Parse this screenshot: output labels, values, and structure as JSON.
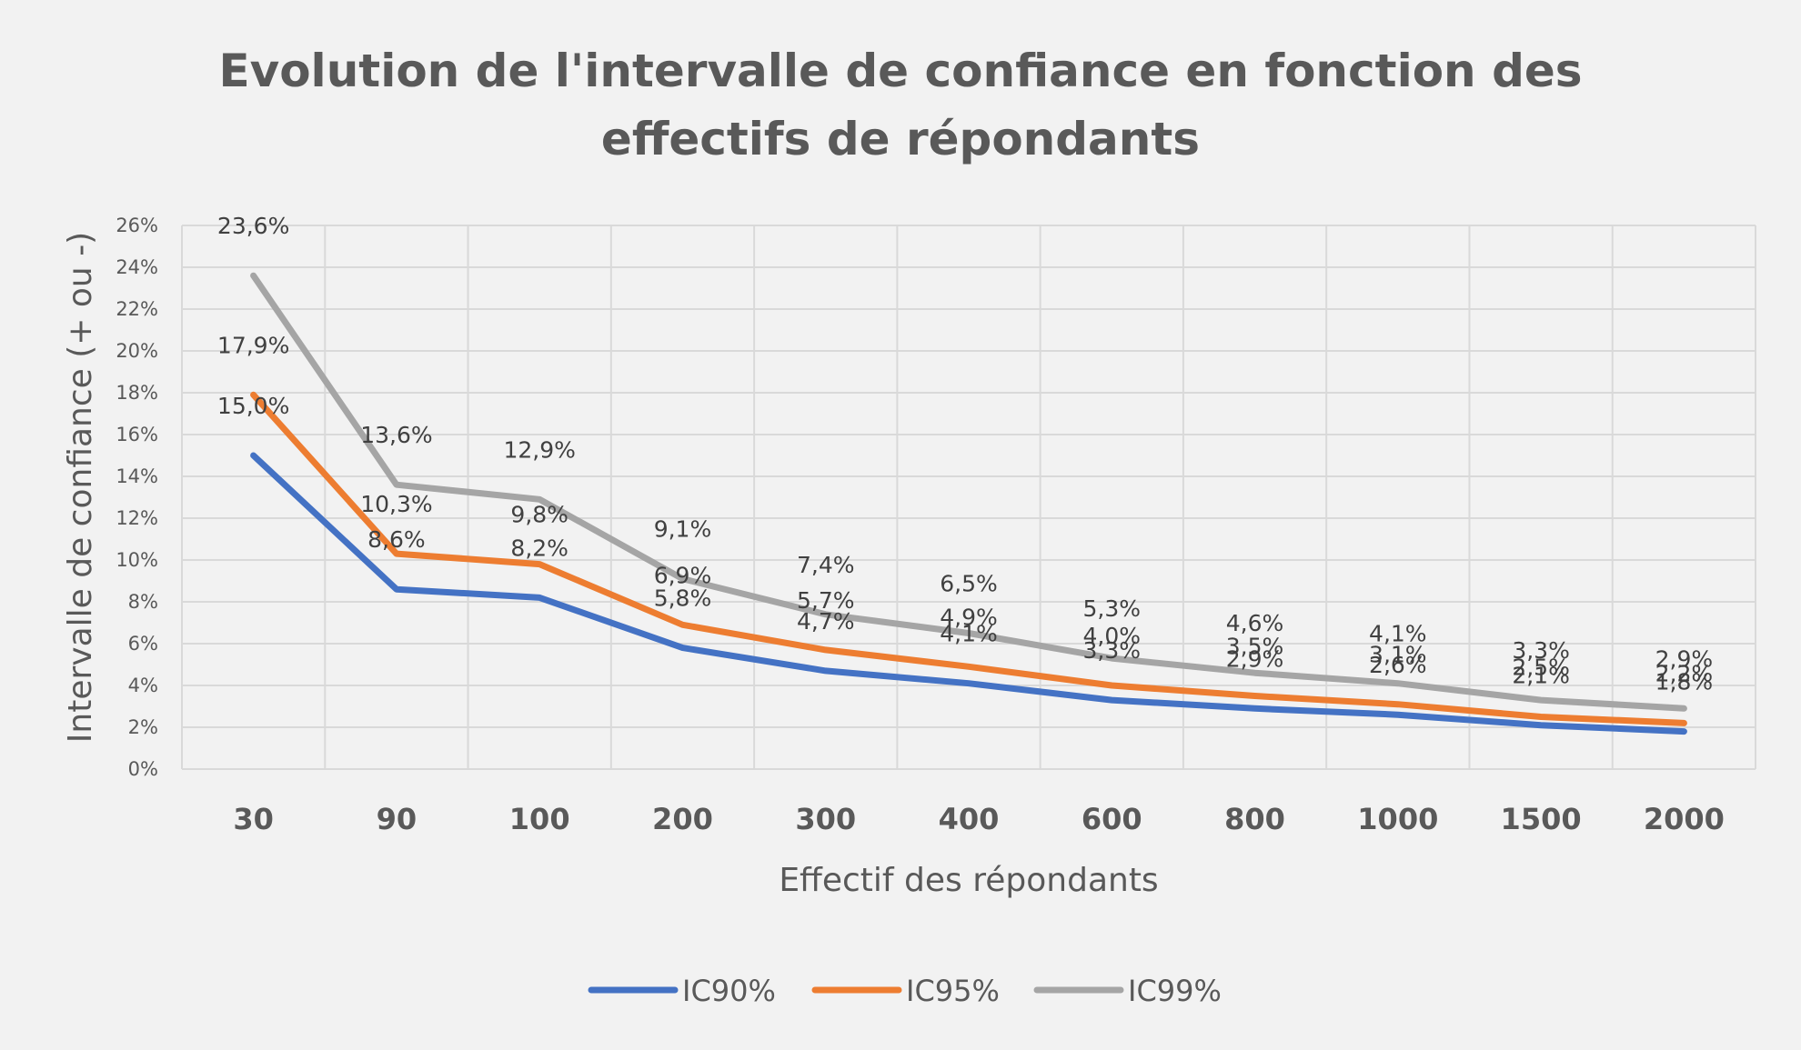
{
  "chart_data": {
    "type": "line",
    "title_lines": [
      "Evolution de l'intervalle de confiance en fonction des",
      "effectifs de répondants"
    ],
    "xlabel": "Effectif des répondants",
    "ylabel": "Intervalle de confiance (+ ou -)",
    "categories": [
      "30",
      "90",
      "100",
      "200",
      "300",
      "400",
      "600",
      "800",
      "1000",
      "1500",
      "2000"
    ],
    "ylim": [
      0,
      26
    ],
    "yticks": [
      0,
      2,
      4,
      6,
      8,
      10,
      12,
      14,
      16,
      18,
      20,
      22,
      24,
      26
    ],
    "ytick_labels": [
      "0%",
      "2%",
      "4%",
      "6%",
      "8%",
      "10%",
      "12%",
      "14%",
      "16%",
      "18%",
      "20%",
      "22%",
      "24%",
      "26%"
    ],
    "grid": true,
    "legend_position": "bottom",
    "series": [
      {
        "name": "IC90%",
        "color": "#4472c4",
        "values": [
          15.0,
          8.6,
          8.2,
          5.8,
          4.7,
          4.1,
          3.3,
          2.9,
          2.6,
          2.1,
          1.8
        ],
        "labels": [
          "15,0%",
          "8,6%",
          "8,2%",
          "5,8%",
          "4,7%",
          "4,1%",
          "3,3%",
          "2,9%",
          "2,6%",
          "2,1%",
          "1,8%"
        ]
      },
      {
        "name": "IC95%",
        "color": "#ed7d31",
        "values": [
          17.9,
          10.3,
          9.8,
          6.9,
          5.7,
          4.9,
          4.0,
          3.5,
          3.1,
          2.5,
          2.2
        ],
        "labels": [
          "17,9%",
          "10,3%",
          "9,8%",
          "6,9%",
          "5,7%",
          "4,9%",
          "4,0%",
          "3,5%",
          "3,1%",
          "2,5%",
          "2,2%"
        ]
      },
      {
        "name": "IC99%",
        "color": "#a5a5a5",
        "values": [
          23.6,
          13.6,
          12.9,
          9.1,
          7.4,
          6.5,
          5.3,
          4.6,
          4.1,
          3.3,
          2.9
        ],
        "labels": [
          "23,6%",
          "13,6%",
          "12,9%",
          "9,1%",
          "7,4%",
          "6,5%",
          "5,3%",
          "4,6%",
          "4,1%",
          "3,3%",
          "2,9%"
        ]
      }
    ]
  }
}
